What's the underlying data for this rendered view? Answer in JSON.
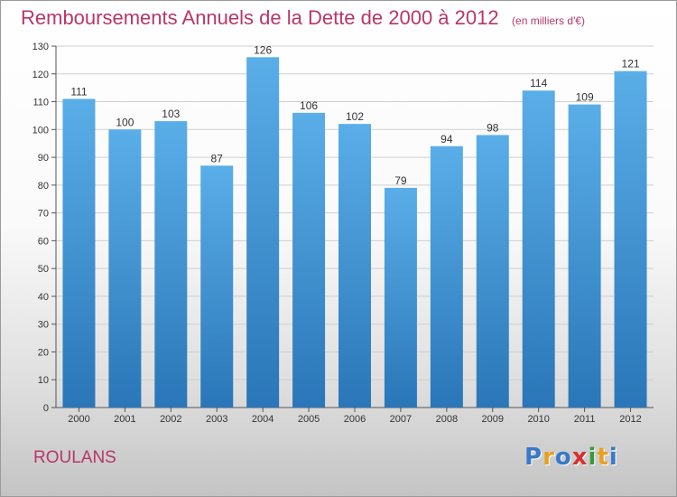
{
  "title": "Remboursements Annuels de la Dette de 2000 à 2012",
  "subtitle": "(en milliers d'€)",
  "commune": "ROULANS",
  "logo": {
    "letters": [
      "P",
      "r",
      "o",
      "x",
      "i",
      "t",
      "i"
    ],
    "colors": [
      "#3a78c8",
      "#e8a020",
      "#3a78c8",
      "#d83030",
      "#3a9a3a",
      "#e8a020",
      "#3a78c8"
    ]
  },
  "colors": {
    "bar_top": "#5aaee8",
    "bar_bottom": "#2a76b8",
    "accent": "#b8366a"
  },
  "chart_data": {
    "type": "bar",
    "categories": [
      "2000",
      "2001",
      "2002",
      "2003",
      "2004",
      "2005",
      "2006",
      "2007",
      "2008",
      "2009",
      "2010",
      "2011",
      "2012"
    ],
    "values": [
      111,
      100,
      103,
      87,
      126,
      106,
      102,
      79,
      94,
      98,
      114,
      109,
      121
    ],
    "data_labels": [
      "111",
      "100",
      "103",
      "87",
      "126",
      "106",
      "102",
      "79",
      "94",
      "98",
      "114",
      "109",
      "121"
    ],
    "ylim": [
      0,
      130
    ],
    "yticks": [
      0,
      10,
      20,
      30,
      40,
      50,
      60,
      70,
      80,
      90,
      100,
      110,
      120,
      130
    ],
    "title": "Remboursements Annuels de la Dette de 2000 à 2012",
    "xlabel": "",
    "ylabel": "",
    "grid": true,
    "legend": "none"
  }
}
